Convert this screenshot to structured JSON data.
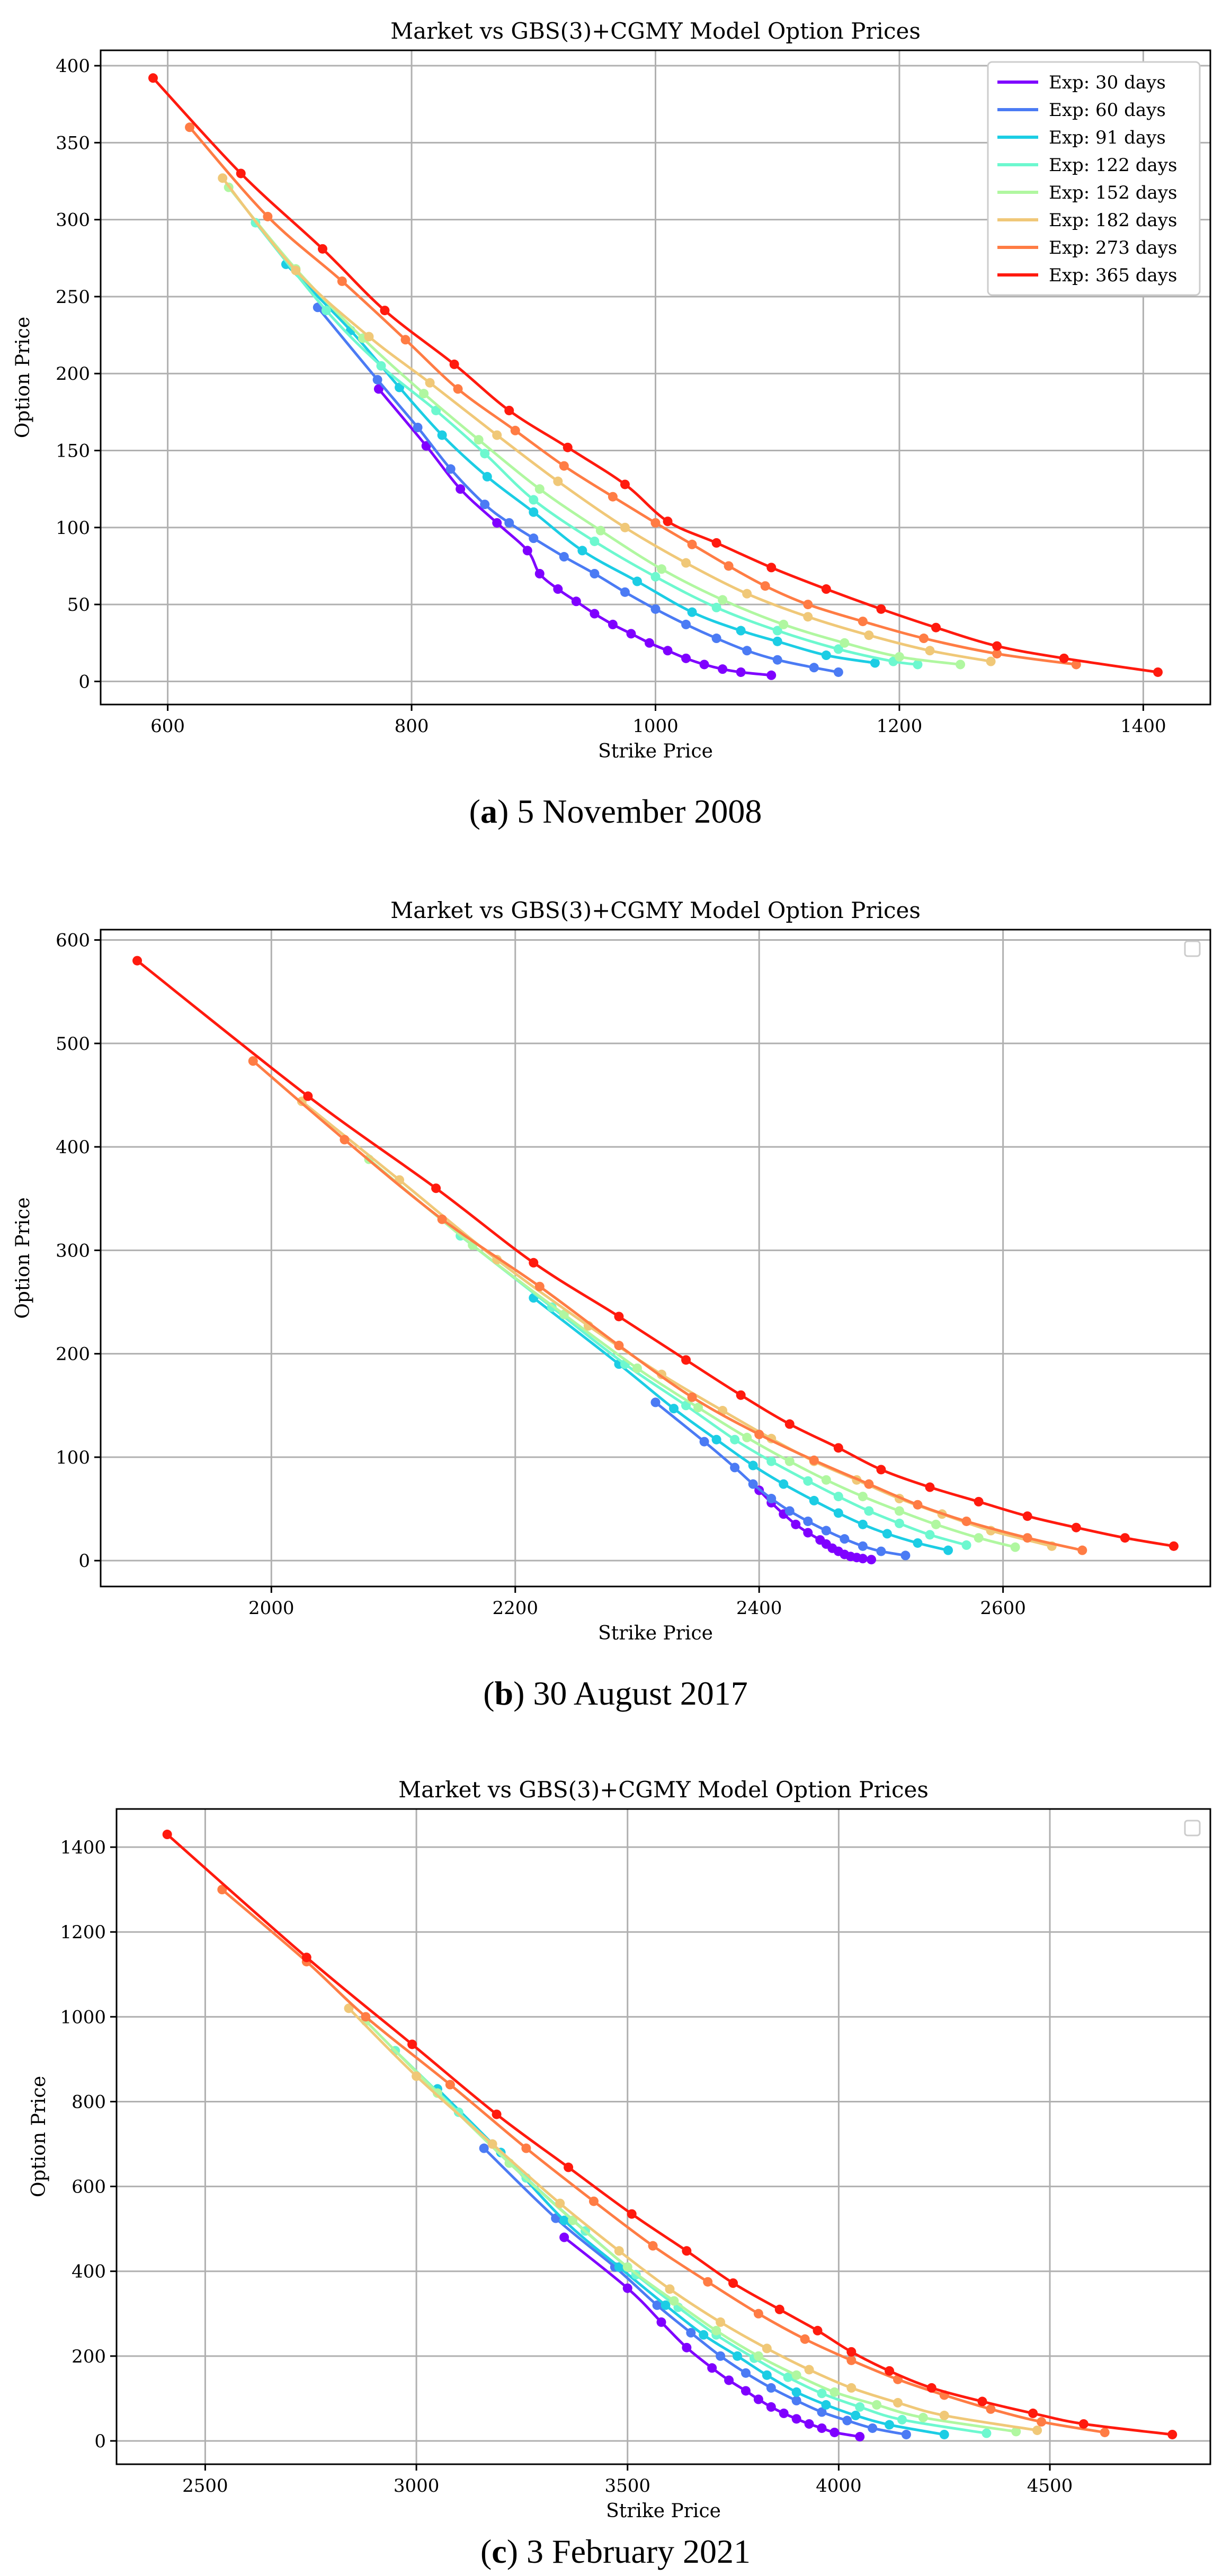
{
  "captions": [
    {
      "letter": "a",
      "open": "(",
      "close": ") 5 November 2008"
    },
    {
      "letter": "b",
      "open": "(",
      "close": ") 30 August 2017"
    },
    {
      "letter": "c",
      "open": "(",
      "close": ") 3 February 2021"
    }
  ],
  "series_colors": {
    "Exp: 30 days": "#7f00ff",
    "Exp: 60 days": "#4b7bf4",
    "Exp: 91 days": "#1ccde4",
    "Exp: 122 days": "#6df8cf",
    "Exp: 152 days": "#b0f7a0",
    "Exp: 182 days": "#f0c878",
    "Exp: 273 days": "#ff7c44",
    "Exp: 365 days": "#ff1a0e"
  },
  "chart_data": [
    {
      "type": "line",
      "title": "Market vs GBS(3)+CGMY Model Option Prices",
      "xlabel": "Strike Price",
      "ylabel": "Option Price",
      "xlim": [
        545,
        1455
      ],
      "ylim": [
        -15,
        410
      ],
      "xticks": [
        600,
        800,
        1000,
        1200,
        1400
      ],
      "yticks": [
        0,
        50,
        100,
        150,
        200,
        250,
        300,
        350,
        400
      ],
      "grid": true,
      "legend": "top-right",
      "legend_entries": [
        "Exp: 30 days",
        "Exp: 60 days",
        "Exp: 91 days",
        "Exp: 122 days",
        "Exp: 152 days",
        "Exp: 182 days",
        "Exp: 273 days",
        "Exp: 365 days"
      ],
      "series": [
        {
          "name": "Exp: 30 days",
          "x": [
            773,
            812,
            840,
            870,
            895,
            905,
            920,
            935,
            950,
            965,
            980,
            995,
            1010,
            1025,
            1040,
            1055,
            1070,
            1095
          ],
          "y": [
            190,
            153,
            125,
            103,
            85,
            70,
            60,
            52,
            44,
            37,
            31,
            25,
            20,
            15,
            11,
            8,
            6,
            4
          ]
        },
        {
          "name": "Exp: 60 days",
          "x": [
            723,
            772,
            805,
            832,
            860,
            880,
            900,
            925,
            950,
            975,
            1000,
            1025,
            1050,
            1075,
            1100,
            1130,
            1150
          ],
          "y": [
            243,
            196,
            165,
            138,
            115,
            103,
            93,
            81,
            70,
            58,
            47,
            37,
            28,
            20,
            14,
            9,
            6
          ]
        },
        {
          "name": "Exp: 91 days",
          "x": [
            697,
            750,
            790,
            825,
            862,
            900,
            940,
            985,
            1030,
            1070,
            1100,
            1140,
            1180
          ],
          "y": [
            271,
            228,
            191,
            160,
            133,
            110,
            85,
            65,
            45,
            33,
            26,
            17,
            12
          ]
        },
        {
          "name": "Exp: 122 days",
          "x": [
            672,
            730,
            775,
            820,
            860,
            900,
            950,
            1000,
            1050,
            1100,
            1150,
            1195,
            1215
          ],
          "y": [
            298,
            241,
            205,
            176,
            148,
            118,
            91,
            68,
            48,
            33,
            21,
            13,
            11
          ]
        },
        {
          "name": "Exp: 152 days",
          "x": [
            650,
            705,
            760,
            810,
            855,
            905,
            955,
            1005,
            1055,
            1105,
            1155,
            1200,
            1250
          ],
          "y": [
            321,
            268,
            223,
            187,
            157,
            125,
            98,
            73,
            53,
            37,
            25,
            16,
            11
          ]
        },
        {
          "name": "Exp: 182 days",
          "x": [
            645,
            705,
            765,
            815,
            870,
            920,
            975,
            1025,
            1075,
            1125,
            1175,
            1225,
            1275
          ],
          "y": [
            327,
            267,
            224,
            194,
            160,
            130,
            100,
            77,
            57,
            42,
            30,
            20,
            13
          ]
        },
        {
          "name": "Exp: 273 days",
          "x": [
            618,
            682,
            743,
            795,
            838,
            885,
            925,
            965,
            1000,
            1030,
            1060,
            1090,
            1125,
            1170,
            1220,
            1280,
            1345
          ],
          "y": [
            360,
            302,
            260,
            222,
            190,
            163,
            140,
            120,
            103,
            89,
            75,
            62,
            50,
            39,
            28,
            18,
            11
          ]
        },
        {
          "name": "Exp: 365 days",
          "x": [
            588,
            660,
            727,
            778,
            835,
            880,
            928,
            975,
            1010,
            1050,
            1095,
            1140,
            1185,
            1230,
            1280,
            1335,
            1412
          ],
          "y": [
            392,
            330,
            281,
            241,
            206,
            176,
            152,
            128,
            104,
            90,
            74,
            60,
            47,
            35,
            23,
            15,
            6
          ]
        }
      ]
    },
    {
      "type": "line",
      "title": "Market vs GBS(3)+CGMY Model Option Prices",
      "xlabel": "Strike Price",
      "ylabel": "Option Price",
      "xlim": [
        1860,
        2770
      ],
      "ylim": [
        -25,
        610
      ],
      "xticks": [
        2000,
        2200,
        2400,
        2600
      ],
      "yticks": [
        0,
        100,
        200,
        300,
        400,
        500,
        600
      ],
      "grid": true,
      "legend": "top-right",
      "legend_entries": [],
      "series": [
        {
          "name": "Exp: 30 days",
          "x": [
            2400,
            2410,
            2420,
            2430,
            2440,
            2450,
            2455,
            2460,
            2465,
            2470,
            2475,
            2480,
            2485,
            2492
          ],
          "y": [
            68,
            56,
            45,
            35,
            27,
            20,
            16,
            12,
            9,
            6,
            4,
            3,
            2,
            1
          ]
        },
        {
          "name": "Exp: 60 days",
          "x": [
            2315,
            2355,
            2380,
            2395,
            2410,
            2425,
            2440,
            2455,
            2470,
            2485,
            2500,
            2520
          ],
          "y": [
            153,
            115,
            90,
            74,
            60,
            48,
            38,
            29,
            21,
            14,
            9,
            5
          ]
        },
        {
          "name": "Exp: 91 days",
          "x": [
            2215,
            2285,
            2330,
            2365,
            2395,
            2420,
            2445,
            2465,
            2485,
            2505,
            2530,
            2555
          ],
          "y": [
            254,
            190,
            147,
            117,
            92,
            74,
            58,
            46,
            35,
            26,
            17,
            10
          ]
        },
        {
          "name": "Exp: 122 days",
          "x": [
            2155,
            2230,
            2290,
            2340,
            2380,
            2410,
            2440,
            2465,
            2490,
            2515,
            2540,
            2570
          ],
          "y": [
            314,
            245,
            190,
            150,
            117,
            96,
            77,
            62,
            48,
            36,
            25,
            15
          ]
        },
        {
          "name": "Exp: 152 days",
          "x": [
            2080,
            2165,
            2240,
            2300,
            2350,
            2390,
            2425,
            2455,
            2485,
            2515,
            2545,
            2580,
            2610
          ],
          "y": [
            388,
            305,
            238,
            186,
            148,
            119,
            96,
            78,
            62,
            48,
            35,
            22,
            13
          ]
        },
        {
          "name": "Exp: 182 days",
          "x": [
            2025,
            2105,
            2185,
            2260,
            2320,
            2370,
            2410,
            2445,
            2480,
            2515,
            2550,
            2590,
            2640
          ],
          "y": [
            444,
            368,
            291,
            227,
            180,
            145,
            118,
            96,
            78,
            60,
            45,
            29,
            14
          ]
        },
        {
          "name": "Exp: 273 days",
          "x": [
            1985,
            2060,
            2140,
            2220,
            2285,
            2345,
            2400,
            2445,
            2490,
            2530,
            2570,
            2620,
            2665
          ],
          "y": [
            483,
            407,
            330,
            265,
            208,
            158,
            122,
            97,
            74,
            54,
            38,
            22,
            10
          ]
        },
        {
          "name": "Exp: 365 days",
          "x": [
            1890,
            2030,
            2135,
            2215,
            2285,
            2340,
            2385,
            2425,
            2465,
            2500,
            2540,
            2580,
            2620,
            2660,
            2700,
            2740
          ],
          "y": [
            580,
            449,
            360,
            288,
            236,
            194,
            160,
            132,
            109,
            88,
            71,
            57,
            43,
            32,
            22,
            14
          ]
        }
      ]
    },
    {
      "type": "line",
      "title": "Market vs GBS(3)+CGMY Model Option Prices",
      "xlabel": "Strike Price",
      "ylabel": "Option Price",
      "xlim": [
        2290,
        4880
      ],
      "ylim": [
        -55,
        1490
      ],
      "xticks": [
        2500,
        3000,
        3500,
        4000,
        4500
      ],
      "yticks": [
        0,
        200,
        400,
        600,
        800,
        1000,
        1200,
        1400
      ],
      "grid": true,
      "legend": "top-right",
      "legend_entries": [],
      "series": [
        {
          "name": "Exp: 30 days",
          "x": [
            3350,
            3500,
            3580,
            3640,
            3700,
            3740,
            3780,
            3810,
            3840,
            3870,
            3900,
            3930,
            3960,
            3990,
            4050
          ],
          "y": [
            480,
            360,
            280,
            220,
            172,
            143,
            118,
            98,
            80,
            65,
            52,
            40,
            30,
            20,
            10
          ]
        },
        {
          "name": "Exp: 60 days",
          "x": [
            3160,
            3330,
            3470,
            3570,
            3650,
            3720,
            3780,
            3840,
            3900,
            3960,
            4020,
            4080,
            4160
          ],
          "y": [
            690,
            525,
            410,
            320,
            255,
            200,
            160,
            125,
            95,
            68,
            48,
            30,
            15
          ]
        },
        {
          "name": "Exp: 91 days",
          "x": [
            3050,
            3200,
            3350,
            3480,
            3590,
            3680,
            3760,
            3830,
            3900,
            3970,
            4040,
            4120,
            4250
          ],
          "y": [
            830,
            680,
            520,
            410,
            320,
            250,
            200,
            155,
            115,
            85,
            60,
            38,
            15
          ]
        },
        {
          "name": "Exp: 122 days",
          "x": [
            2950,
            3100,
            3260,
            3400,
            3520,
            3620,
            3710,
            3800,
            3880,
            3960,
            4050,
            4150,
            4350
          ],
          "y": [
            920,
            775,
            620,
            495,
            392,
            315,
            250,
            195,
            150,
            112,
            80,
            50,
            18
          ]
        },
        {
          "name": "Exp: 152 days",
          "x": [
            2880,
            3050,
            3220,
            3370,
            3500,
            3610,
            3710,
            3810,
            3900,
            3990,
            4090,
            4200,
            4420
          ],
          "y": [
            990,
            820,
            655,
            520,
            410,
            330,
            260,
            200,
            155,
            115,
            85,
            55,
            22
          ]
        },
        {
          "name": "Exp: 182 days",
          "x": [
            2840,
            3000,
            3180,
            3340,
            3480,
            3600,
            3720,
            3830,
            3930,
            4030,
            4140,
            4250,
            4470
          ],
          "y": [
            1020,
            860,
            700,
            560,
            448,
            358,
            280,
            218,
            168,
            125,
            90,
            60,
            25
          ]
        },
        {
          "name": "Exp: 273 days",
          "x": [
            2540,
            2740,
            2880,
            3080,
            3260,
            3420,
            3560,
            3690,
            3810,
            3920,
            4030,
            4140,
            4250,
            4360,
            4480,
            4630
          ],
          "y": [
            1300,
            1130,
            1000,
            840,
            690,
            565,
            460,
            375,
            300,
            240,
            190,
            145,
            108,
            75,
            45,
            20
          ]
        },
        {
          "name": "Exp: 365 days",
          "x": [
            2410,
            2740,
            2990,
            3190,
            3360,
            3510,
            3640,
            3750,
            3860,
            3950,
            4030,
            4120,
            4220,
            4340,
            4460,
            4580,
            4790
          ],
          "y": [
            1430,
            1140,
            935,
            770,
            645,
            535,
            448,
            372,
            310,
            260,
            210,
            165,
            125,
            93,
            65,
            40,
            15
          ]
        }
      ]
    }
  ]
}
